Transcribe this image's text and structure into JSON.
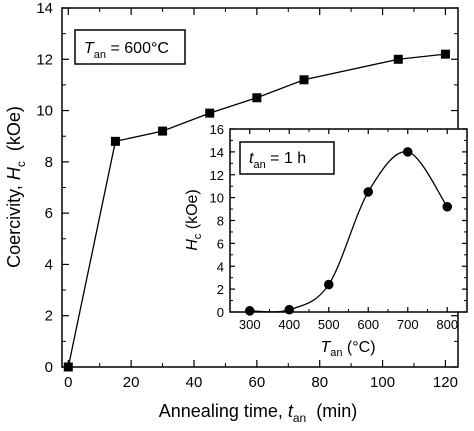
{
  "chart_data": [
    {
      "type": "line",
      "marker": "square",
      "x": [
        0,
        15,
        30,
        45,
        60,
        75,
        105,
        120
      ],
      "y": [
        0.0,
        8.8,
        9.2,
        9.9,
        10.5,
        11.2,
        12.0,
        12.2
      ],
      "xlim": [
        -2,
        124
      ],
      "ylim": [
        0,
        14
      ],
      "xticks": [
        "0",
        "20",
        "40",
        "60",
        "80",
        "100",
        "120"
      ],
      "yticks": [
        "0",
        "2",
        "4",
        "6",
        "8",
        "10",
        "12",
        "14"
      ],
      "xlabel": {
        "main": "Annealing time, ",
        "sym": "t",
        "sub": "an",
        "unit": "  (min)"
      },
      "ylabel": {
        "main": "Coercivity, ",
        "sym": "H",
        "sub": "c",
        "unit": "  (kOe)"
      },
      "annotation": {
        "sym": "T",
        "sub": "an",
        "rest": " = 600°C"
      }
    },
    {
      "type": "line",
      "marker": "circle",
      "x": [
        300,
        400,
        500,
        600,
        700,
        800
      ],
      "y": [
        0.1,
        0.2,
        2.4,
        10.5,
        14.0,
        9.2
      ],
      "xlim": [
        250,
        850
      ],
      "ylim": [
        0,
        16
      ],
      "xticks": [
        "300",
        "400",
        "500",
        "600",
        "700",
        "800"
      ],
      "yticks": [
        "0",
        "2",
        "4",
        "6",
        "8",
        "10",
        "12",
        "14",
        "16"
      ],
      "xlabel": {
        "sym": "T",
        "sub": "an",
        "unit": " (°C)"
      },
      "ylabel": {
        "sym": "H",
        "sub": "c",
        "unit": " (kOe)"
      },
      "annotation": {
        "sym": "t",
        "sub": "an",
        "rest": " = 1 h"
      }
    }
  ]
}
